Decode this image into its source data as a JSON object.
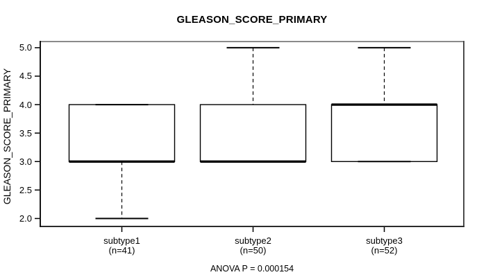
{
  "chart_data": {
    "type": "boxplot",
    "title": "GLEASON_SCORE_PRIMARY",
    "ylabel": "GLEASON_SCORE_PRIMARY",
    "xlabel": "",
    "annotation": "ANOVA P = 0.000154",
    "anova_p": 0.000154,
    "ylim": [
      1.86,
      5.12
    ],
    "yticks": [
      2.0,
      2.5,
      3.0,
      3.5,
      4.0,
      4.5,
      5.0
    ],
    "ytick_labels": [
      "2.0",
      "2.5",
      "3.0",
      "3.5",
      "4.0",
      "4.5",
      "5.0"
    ],
    "grid": false,
    "legend": null,
    "groups": [
      {
        "label": "subtype1",
        "sublabel": "(n=41)",
        "n": 41,
        "whisker_low": 2.0,
        "q1": 3.0,
        "median": 3.0,
        "q3": 4.0,
        "whisker_high": 4.0
      },
      {
        "label": "subtype2",
        "sublabel": "(n=50)",
        "n": 50,
        "whisker_low": 3.0,
        "q1": 3.0,
        "median": 3.0,
        "q3": 4.0,
        "whisker_high": 5.0
      },
      {
        "label": "subtype3",
        "sublabel": "(n=52)",
        "n": 52,
        "whisker_low": 3.0,
        "q1": 3.0,
        "median": 4.0,
        "q3": 4.0,
        "whisker_high": 5.0
      }
    ],
    "colors": {
      "line": "#000000",
      "box_fill": "#ffffff",
      "background": "#ffffff",
      "frame_top": "#8a8a8a",
      "frame_right": "#4c4c4c",
      "frame_bottom": "#2a2a2a",
      "frame_left": "#141414"
    }
  }
}
